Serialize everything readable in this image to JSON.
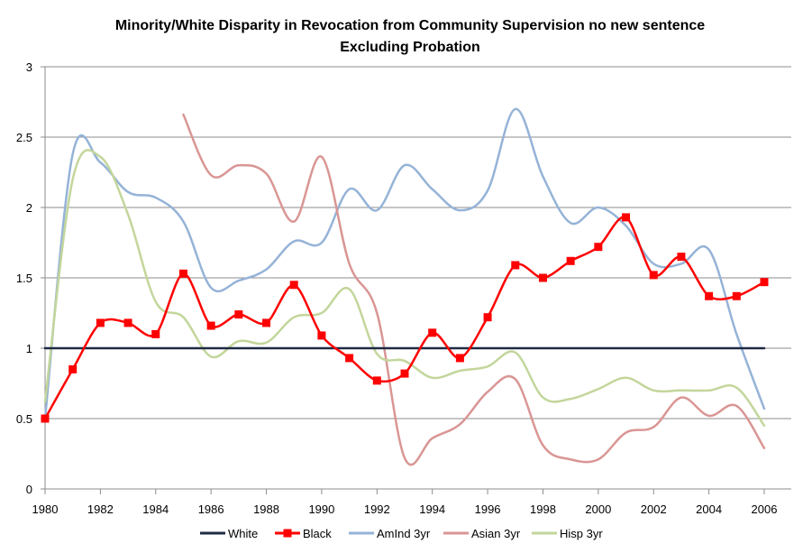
{
  "chart_data": {
    "type": "line",
    "title": "Minority/White Disparity in Revocation from Community Supervision  no new sentence",
    "subtitle": "Excluding Probation",
    "xlabel": "",
    "ylabel": "",
    "xlim": [
      1980,
      2006
    ],
    "ylim": [
      0,
      3
    ],
    "x_ticks": [
      "1980",
      "1982",
      "1984",
      "1986",
      "1988",
      "1990",
      "1992",
      "1994",
      "1996",
      "1998",
      "2000",
      "2002",
      "2004",
      "2006"
    ],
    "y_ticks": [
      "0",
      "0.5",
      "1",
      "1.5",
      "2",
      "2.5",
      "3"
    ],
    "grid": "horizontal",
    "legend_position": "bottom",
    "series": [
      {
        "name": "White",
        "color": "#1f2a44",
        "marker": "none",
        "points": [
          [
            1980,
            1
          ],
          [
            1981,
            1
          ],
          [
            1982,
            1
          ],
          [
            1983,
            1
          ],
          [
            1984,
            1
          ],
          [
            1985,
            1
          ],
          [
            1986,
            1
          ],
          [
            1987,
            1
          ],
          [
            1988,
            1
          ],
          [
            1989,
            1
          ],
          [
            1990,
            1
          ],
          [
            1991,
            1
          ],
          [
            1992,
            1
          ],
          [
            1993,
            1
          ],
          [
            1994,
            1
          ],
          [
            1995,
            1
          ],
          [
            1996,
            1
          ],
          [
            1997,
            1
          ],
          [
            1998,
            1
          ],
          [
            1999,
            1
          ],
          [
            2000,
            1
          ],
          [
            2001,
            1
          ],
          [
            2002,
            1
          ],
          [
            2003,
            1
          ],
          [
            2004,
            1
          ],
          [
            2005,
            1
          ],
          [
            2006,
            1
          ]
        ]
      },
      {
        "name": "Black",
        "color": "#ff0000",
        "marker": "square",
        "points": [
          [
            1980,
            0.5
          ],
          [
            1981,
            0.85
          ],
          [
            1982,
            1.18
          ],
          [
            1983,
            1.18
          ],
          [
            1984,
            1.1
          ],
          [
            1985,
            1.53
          ],
          [
            1986,
            1.16
          ],
          [
            1987,
            1.24
          ],
          [
            1988,
            1.18
          ],
          [
            1989,
            1.45
          ],
          [
            1990,
            1.09
          ],
          [
            1991,
            0.93
          ],
          [
            1992,
            0.77
          ],
          [
            1993,
            0.82
          ],
          [
            1994,
            1.11
          ],
          [
            1995,
            0.93
          ],
          [
            1996,
            1.22
          ],
          [
            1997,
            1.59
          ],
          [
            1998,
            1.5
          ],
          [
            1999,
            1.62
          ],
          [
            2000,
            1.72
          ],
          [
            2001,
            1.93
          ],
          [
            2002,
            1.52
          ],
          [
            2003,
            1.65
          ],
          [
            2004,
            1.37
          ],
          [
            2005,
            1.37
          ],
          [
            2006,
            1.47
          ]
        ]
      },
      {
        "name": "AmInd 3yr",
        "color": "#95b3d7",
        "marker": "none",
        "points": [
          [
            1980,
            0.5
          ],
          [
            1981,
            2.38
          ],
          [
            1982,
            2.32
          ],
          [
            1983,
            2.11
          ],
          [
            1984,
            2.07
          ],
          [
            1985,
            1.9
          ],
          [
            1986,
            1.43
          ],
          [
            1987,
            1.48
          ],
          [
            1988,
            1.56
          ],
          [
            1989,
            1.76
          ],
          [
            1990,
            1.75
          ],
          [
            1991,
            2.13
          ],
          [
            1992,
            1.98
          ],
          [
            1993,
            2.3
          ],
          [
            1994,
            2.13
          ],
          [
            1995,
            1.98
          ],
          [
            1996,
            2.12
          ],
          [
            1997,
            2.7
          ],
          [
            1998,
            2.22
          ],
          [
            1999,
            1.89
          ],
          [
            2000,
            2.0
          ],
          [
            2001,
            1.87
          ],
          [
            2002,
            1.6
          ],
          [
            2003,
            1.6
          ],
          [
            2004,
            1.7
          ],
          [
            2005,
            1.1
          ],
          [
            2006,
            0.57
          ]
        ]
      },
      {
        "name": "Asian 3yr",
        "color": "#d99694",
        "marker": "none",
        "points": [
          [
            1985,
            2.66
          ],
          [
            1986,
            2.23
          ],
          [
            1987,
            2.3
          ],
          [
            1988,
            2.24
          ],
          [
            1989,
            1.9
          ],
          [
            1990,
            2.36
          ],
          [
            1991,
            1.6
          ],
          [
            1992,
            1.25
          ],
          [
            1993,
            0.22
          ],
          [
            1994,
            0.36
          ],
          [
            1995,
            0.46
          ],
          [
            1996,
            0.69
          ],
          [
            1997,
            0.78
          ],
          [
            1998,
            0.31
          ],
          [
            1999,
            0.21
          ],
          [
            2000,
            0.21
          ],
          [
            2001,
            0.4
          ],
          [
            2002,
            0.44
          ],
          [
            2003,
            0.65
          ],
          [
            2004,
            0.52
          ],
          [
            2005,
            0.59
          ],
          [
            2006,
            0.29
          ]
        ]
      },
      {
        "name": "Hisp 3yr",
        "color": "#c3d69b",
        "marker": "none",
        "points": [
          [
            1980,
            0.62
          ],
          [
            1981,
            2.2
          ],
          [
            1982,
            2.36
          ],
          [
            1983,
            1.95
          ],
          [
            1984,
            1.33
          ],
          [
            1985,
            1.22
          ],
          [
            1986,
            0.94
          ],
          [
            1987,
            1.05
          ],
          [
            1988,
            1.04
          ],
          [
            1989,
            1.22
          ],
          [
            1990,
            1.25
          ],
          [
            1991,
            1.42
          ],
          [
            1992,
            0.96
          ],
          [
            1993,
            0.91
          ],
          [
            1994,
            0.79
          ],
          [
            1995,
            0.84
          ],
          [
            1996,
            0.87
          ],
          [
            1997,
            0.97
          ],
          [
            1998,
            0.65
          ],
          [
            1999,
            0.64
          ],
          [
            2000,
            0.71
          ],
          [
            2001,
            0.79
          ],
          [
            2002,
            0.7
          ],
          [
            2003,
            0.7
          ],
          [
            2004,
            0.7
          ],
          [
            2005,
            0.72
          ],
          [
            2006,
            0.45
          ]
        ]
      }
    ]
  }
}
